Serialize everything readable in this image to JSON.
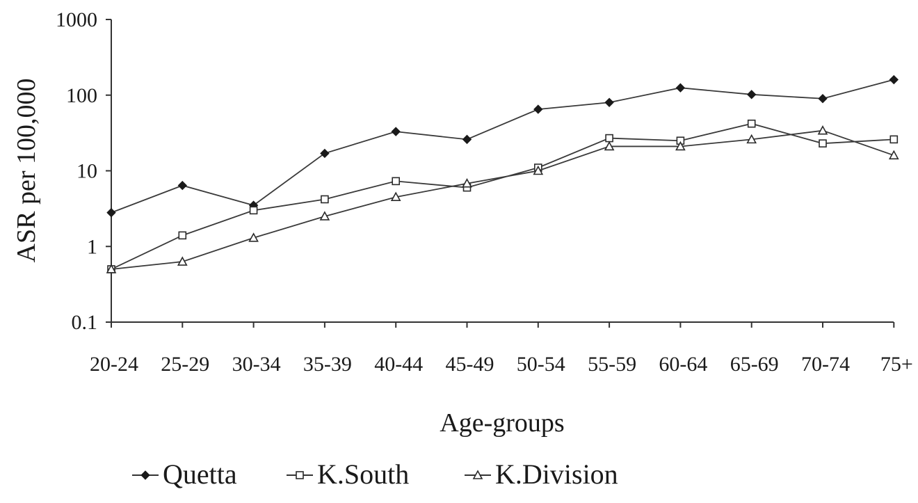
{
  "chart_data": {
    "type": "line",
    "xlabel": "Age-groups",
    "ylabel": "ASR per 100,000",
    "y_scale": "log",
    "ylim": [
      0.1,
      1000
    ],
    "y_ticks": [
      "1000",
      "100",
      "10",
      "1",
      "0.1"
    ],
    "y_tick_values": [
      1000,
      100,
      10,
      1,
      0.1
    ],
    "categories": [
      "20-24",
      "25-29",
      "30-34",
      "35-39",
      "40-44",
      "45-49",
      "50-54",
      "55-59",
      "60-64",
      "65-69",
      "70-74",
      "75+"
    ],
    "grid": false,
    "legend_position": "bottom",
    "series": [
      {
        "name": "Quetta",
        "marker": "diamond",
        "color": "#3a3a3a",
        "values": [
          2.8,
          6.4,
          3.5,
          17,
          33,
          26,
          65,
          80,
          125,
          102,
          90,
          160
        ]
      },
      {
        "name": "K.South",
        "marker": "square",
        "color": "#3a3a3a",
        "values": [
          0.5,
          1.4,
          3.0,
          4.2,
          7.3,
          6.0,
          11,
          27,
          25,
          42,
          23,
          26
        ]
      },
      {
        "name": "K.Division",
        "marker": "triangle",
        "color": "#3a3a3a",
        "values": [
          0.5,
          0.63,
          1.3,
          2.5,
          4.5,
          6.8,
          10,
          21,
          21,
          26,
          34,
          16
        ]
      }
    ]
  }
}
